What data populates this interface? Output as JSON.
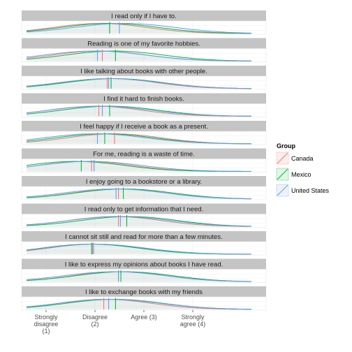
{
  "chart_data": {
    "type": "area",
    "xlim": [
      0.5,
      5.5
    ],
    "x_ticks": [
      {
        "value": 1,
        "label": [
          "Strongly",
          "disagree",
          "(1)"
        ]
      },
      {
        "value": 2,
        "label": [
          "Disagree",
          "(2)"
        ]
      },
      {
        "value": 3,
        "label": [
          "Agree (3)"
        ]
      },
      {
        "value": 4,
        "label": [
          "Strongly",
          "agree (4)"
        ]
      }
    ],
    "legend": {
      "title": "Group",
      "placement": "right",
      "items": [
        {
          "name": "Canada",
          "color": "#F8766D"
        },
        {
          "name": "Mexico",
          "color": "#00BA38"
        },
        {
          "name": "United States",
          "color": "#619CFF"
        }
      ]
    },
    "panels": [
      {
        "title": "I read only if I have to.",
        "means": {
          "Canada": 2.3,
          "Mexico": 2.3,
          "United States": 2.5
        },
        "peaks": {
          "Canada": 2.1,
          "Mexico": 2.3,
          "United States": 2.6
        }
      },
      {
        "title": "Reading is one of my favorite hobbies.",
        "means": {
          "Canada": 2.15,
          "Mexico": 2.42,
          "United States": 2.05
        },
        "peaks": {
          "Canada": 2.1,
          "Mexico": 2.4,
          "United States": 2.0
        }
      },
      {
        "title": "I like talking about books with other people.",
        "means": {
          "Canada": 2.25,
          "Mexico": 2.33,
          "United States": 2.28
        },
        "peaks": {
          "Canada": 2.3,
          "Mexico": 2.4,
          "United States": 2.3
        }
      },
      {
        "title": "I find it hard to finish books.",
        "means": {
          "Canada": 2.08,
          "Mexico": 2.3,
          "United States": 2.15
        },
        "peaks": {
          "Canada": 2.0,
          "Mexico": 2.3,
          "United States": 2.1
        }
      },
      {
        "title": "I feel happy if I receive a book as a present.",
        "means": {
          "Canada": 2.4,
          "Mexico": 2.2,
          "United States": 2.05
        },
        "peaks": {
          "Canada": 2.4,
          "Mexico": 2.2,
          "United States": 2.0
        }
      },
      {
        "title": "For me, reading is a waste of time.",
        "means": {
          "Canada": 1.93,
          "Mexico": 1.72,
          "United States": 1.98
        },
        "peaks": {
          "Canada": 1.8,
          "Mexico": 1.6,
          "United States": 1.9
        }
      },
      {
        "title": "I enjoy going to a bookstore or a library.",
        "means": {
          "Canada": 2.48,
          "Mexico": 2.58,
          "United States": 2.43
        },
        "peaks": {
          "Canada": 2.5,
          "Mexico": 2.6,
          "United States": 2.4
        }
      },
      {
        "title": "I read only to get information that I need.",
        "means": {
          "Canada": 2.48,
          "Mexico": 2.65,
          "United States": 2.52
        },
        "peaks": {
          "Canada": 2.4,
          "Mexico": 2.7,
          "United States": 2.5
        }
      },
      {
        "title": "I cannot sit still and read for more than a few minutes.",
        "means": {
          "Canada": 1.95,
          "Mexico": 1.93,
          "United States": 1.97
        },
        "peaks": {
          "Canada": 2.0,
          "Mexico": 1.9,
          "United States": 2.0
        }
      },
      {
        "title": "I like to express my opinions about books I have read.",
        "means": {
          "Canada": 2.48,
          "Mexico": 2.53,
          "United States": 2.48
        },
        "peaks": {
          "Canada": 2.5,
          "Mexico": 2.6,
          "United States": 2.4
        }
      },
      {
        "title": "I like to exchange books with my friends",
        "means": {
          "Canada": 2.18,
          "Mexico": 2.42,
          "United States": 2.28
        },
        "peaks": {
          "Canada": 2.2,
          "Mexico": 2.4,
          "United States": 2.3
        }
      }
    ]
  }
}
